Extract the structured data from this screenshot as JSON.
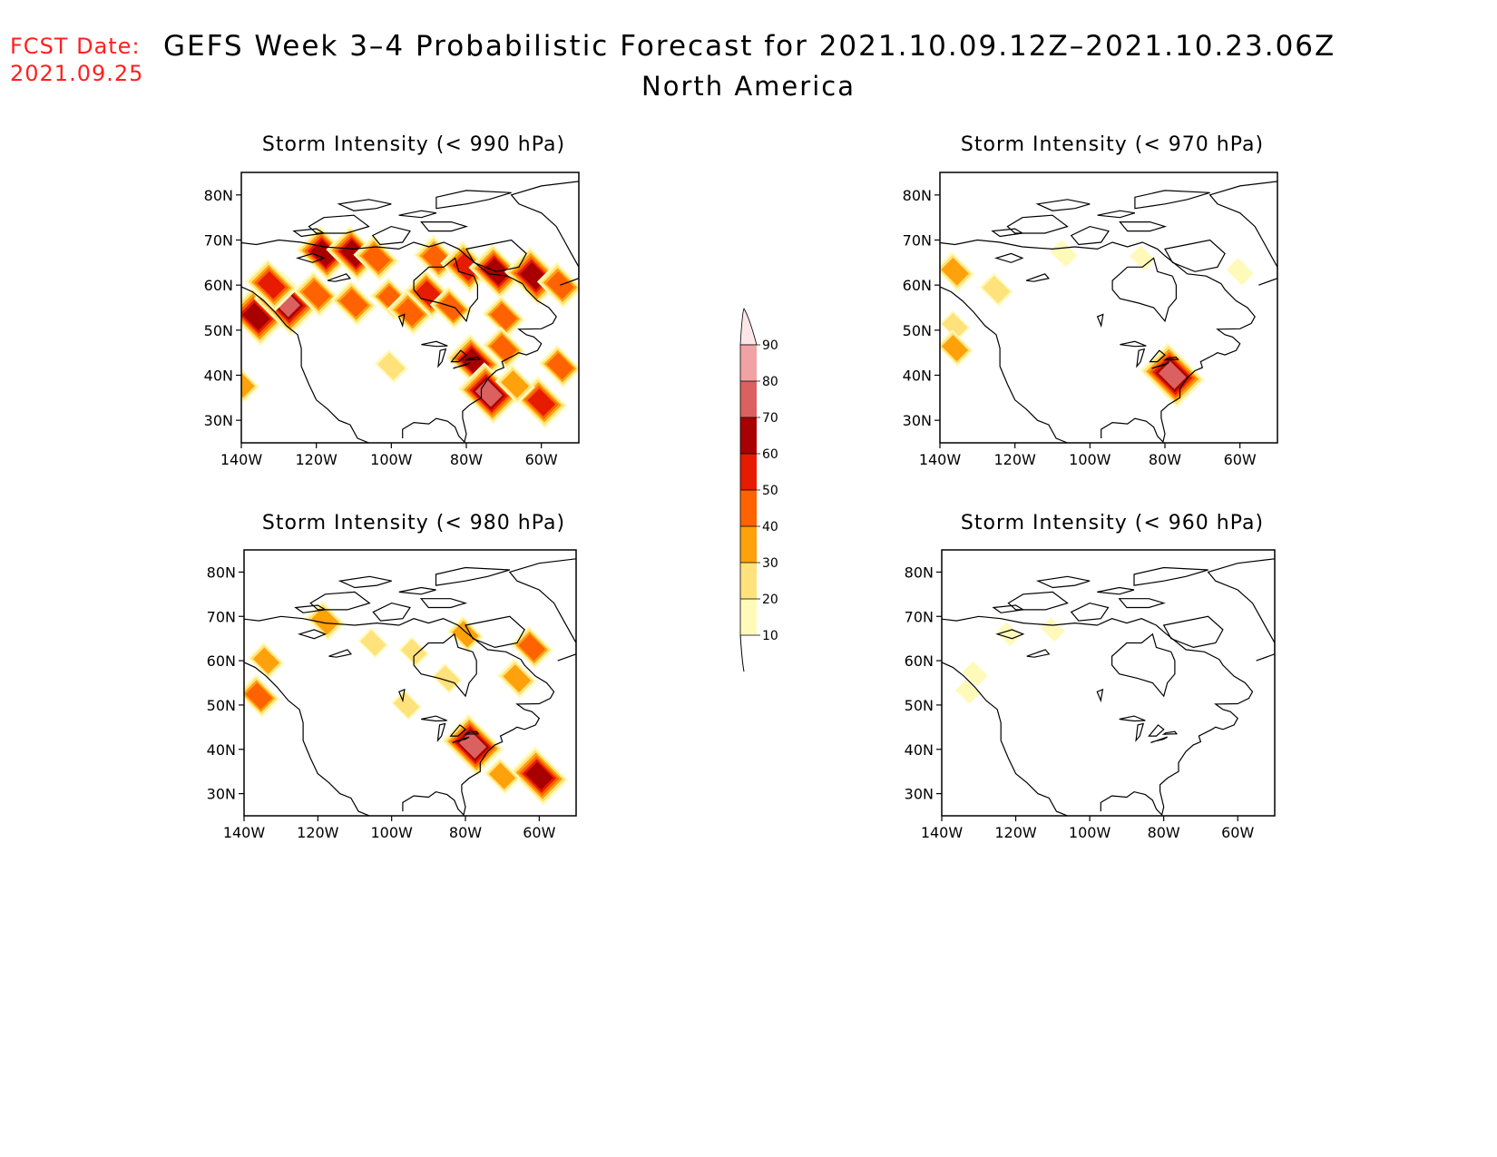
{
  "header": {
    "fcst_label": "FCST Date:",
    "fcst_date": "2021.09.25",
    "title": "GEFS Week 3–4 Probabilistic Forecast for 2021.10.09.12Z–2021.10.23.06Z",
    "subtitle": "North America"
  },
  "map": {
    "lon_range": [
      -140,
      -50
    ],
    "lat_range": [
      25,
      85
    ],
    "lon_ticks": [
      -140,
      -120,
      -100,
      -80,
      -60
    ],
    "lon_tick_labels": [
      "140W",
      "120W",
      "100W",
      "80W",
      "60W"
    ],
    "lat_ticks": [
      30,
      40,
      50,
      60,
      70,
      80
    ],
    "lat_tick_labels": [
      "30N",
      "40N",
      "50N",
      "60N",
      "70N",
      "80N"
    ]
  },
  "panels": [
    {
      "title": "Storm Intensity (< 990 hPa)",
      "blobs": [
        {
          "lon": -136,
          "lat": 53,
          "value": 65
        },
        {
          "lon": -128,
          "lat": 56,
          "value": 75
        },
        {
          "lon": -132,
          "lat": 60,
          "value": 55
        },
        {
          "lon": -120,
          "lat": 58,
          "value": 45
        },
        {
          "lon": -118,
          "lat": 67,
          "value": 60
        },
        {
          "lon": -110,
          "lat": 67,
          "value": 60
        },
        {
          "lon": -104,
          "lat": 66,
          "value": 45
        },
        {
          "lon": -110,
          "lat": 56,
          "value": 45
        },
        {
          "lon": -100,
          "lat": 57,
          "value": 40
        },
        {
          "lon": -95,
          "lat": 54,
          "value": 45
        },
        {
          "lon": -90,
          "lat": 58,
          "value": 50
        },
        {
          "lon": -88,
          "lat": 66,
          "value": 45
        },
        {
          "lon": -80,
          "lat": 64,
          "value": 55
        },
        {
          "lon": -72,
          "lat": 63,
          "value": 60
        },
        {
          "lon": -62,
          "lat": 62,
          "value": 65
        },
        {
          "lon": -55,
          "lat": 60,
          "value": 45
        },
        {
          "lon": -84,
          "lat": 55,
          "value": 40
        },
        {
          "lon": -70,
          "lat": 53,
          "value": 40
        },
        {
          "lon": -78,
          "lat": 43,
          "value": 60
        },
        {
          "lon": -70,
          "lat": 46,
          "value": 40
        },
        {
          "lon": -74,
          "lat": 36,
          "value": 70
        },
        {
          "lon": -60,
          "lat": 34,
          "value": 55
        },
        {
          "lon": -55,
          "lat": 42,
          "value": 40
        },
        {
          "lon": -67,
          "lat": 38,
          "value": 35
        },
        {
          "lon": -100,
          "lat": 42,
          "value": 25
        },
        {
          "lon": -140,
          "lat": 38,
          "value": 30
        }
      ]
    },
    {
      "title": "Storm Intensity (< 970 hPa)",
      "blobs": [
        {
          "lon": -136,
          "lat": 63,
          "value": 35
        },
        {
          "lon": -136,
          "lat": 51,
          "value": 20
        },
        {
          "lon": -136,
          "lat": 46,
          "value": 30
        },
        {
          "lon": -125,
          "lat": 59,
          "value": 25
        },
        {
          "lon": -107,
          "lat": 67,
          "value": 15
        },
        {
          "lon": -78,
          "lat": 40,
          "value": 75
        },
        {
          "lon": -60,
          "lat": 63,
          "value": 15
        },
        {
          "lon": -86,
          "lat": 66,
          "value": 12
        }
      ]
    },
    {
      "title": "Storm Intensity (< 980 hPa)",
      "blobs": [
        {
          "lon": -136,
          "lat": 52,
          "value": 40
        },
        {
          "lon": -134,
          "lat": 60,
          "value": 30
        },
        {
          "lon": -118,
          "lat": 69,
          "value": 35
        },
        {
          "lon": -105,
          "lat": 64,
          "value": 20
        },
        {
          "lon": -94,
          "lat": 62,
          "value": 20
        },
        {
          "lon": -80,
          "lat": 66,
          "value": 30
        },
        {
          "lon": -62,
          "lat": 63,
          "value": 40
        },
        {
          "lon": -66,
          "lat": 56,
          "value": 35
        },
        {
          "lon": -78,
          "lat": 41,
          "value": 70
        },
        {
          "lon": -60,
          "lat": 34,
          "value": 65
        },
        {
          "lon": -70,
          "lat": 34,
          "value": 30
        },
        {
          "lon": -96,
          "lat": 50,
          "value": 20
        },
        {
          "lon": -85,
          "lat": 56,
          "value": 20
        }
      ]
    },
    {
      "title": "Storm Intensity (< 960 hPa)",
      "blobs": [
        {
          "lon": -131,
          "lat": 57,
          "value": 12
        },
        {
          "lon": -133,
          "lat": 53,
          "value": 10
        },
        {
          "lon": -110,
          "lat": 67,
          "value": 10
        },
        {
          "lon": -122,
          "lat": 66,
          "value": 10
        }
      ]
    }
  ],
  "colorbar": {
    "levels": [
      "10",
      "20",
      "30",
      "40",
      "50",
      "60",
      "70",
      "80",
      "90"
    ],
    "colors": [
      "#fffaba",
      "#ffe27c",
      "#ffa10a",
      "#ff6200",
      "#e61b00",
      "#a80000",
      "#db6060",
      "#f1a2a5",
      "#fde5e8"
    ]
  }
}
